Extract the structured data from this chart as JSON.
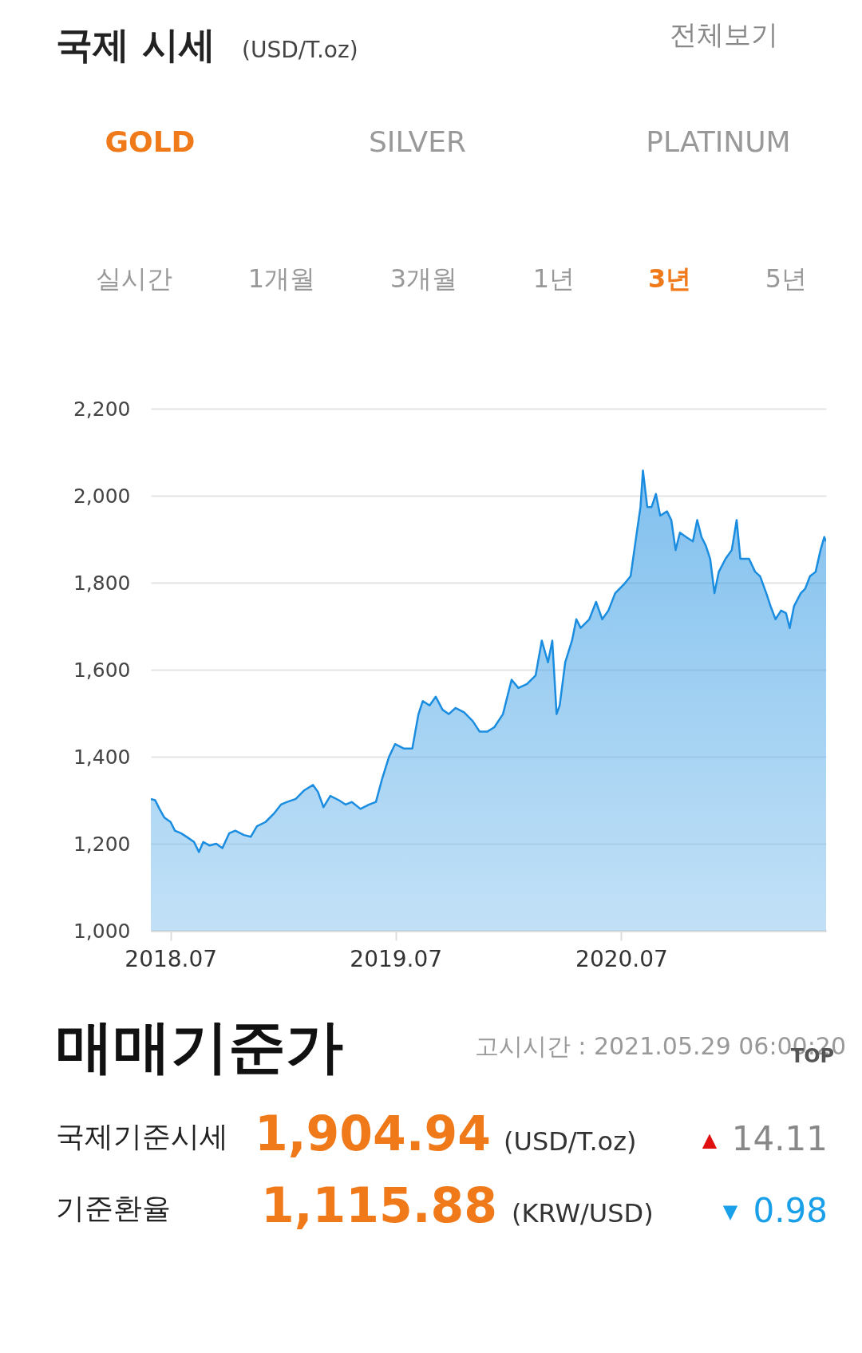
{
  "chart_data": {
    "type": "area",
    "title": "국제 시세",
    "subtitle": "(USD/T.oz)",
    "x": [
      "2018-05-30",
      "2018-06-06",
      "2018-06-13",
      "2018-06-21",
      "2018-07-01",
      "2018-07-08",
      "2018-07-18",
      "2018-07-29",
      "2018-08-08",
      "2018-08-16",
      "2018-08-23",
      "2018-09-02",
      "2018-09-13",
      "2018-09-23",
      "2018-10-04",
      "2018-10-14",
      "2018-10-28",
      "2018-11-08",
      "2018-11-18",
      "2018-12-02",
      "2018-12-16",
      "2018-12-27",
      "2019-01-06",
      "2019-01-20",
      "2019-02-03",
      "2019-02-17",
      "2019-02-25",
      "2019-03-06",
      "2019-03-17",
      "2019-03-31",
      "2019-04-11",
      "2019-04-21",
      "2019-05-05",
      "2019-05-19",
      "2019-05-30",
      "2019-06-09",
      "2019-06-20",
      "2019-06-30",
      "2019-07-14",
      "2019-07-28",
      "2019-08-07",
      "2019-08-14",
      "2019-08-25",
      "2019-09-04",
      "2019-09-15",
      "2019-09-25",
      "2019-10-06",
      "2019-10-20",
      "2019-11-03",
      "2019-11-14",
      "2019-11-27",
      "2019-12-08",
      "2019-12-22",
      "2020-01-05",
      "2020-01-16",
      "2020-01-30",
      "2020-02-13",
      "2020-02-23",
      "2020-03-04",
      "2020-03-11",
      "2020-03-18",
      "2020-03-23",
      "2020-04-01",
      "2020-04-12",
      "2020-04-19",
      "2020-04-26",
      "2020-05-10",
      "2020-05-21",
      "2020-05-31",
      "2020-06-10",
      "2020-06-21",
      "2020-07-05",
      "2020-07-16",
      "2020-07-26",
      "2020-08-01",
      "2020-08-05",
      "2020-08-12",
      "2020-08-19",
      "2020-08-26",
      "2020-09-02",
      "2020-09-13",
      "2020-09-20",
      "2020-09-27",
      "2020-10-04",
      "2020-10-14",
      "2020-10-25",
      "2020-11-01",
      "2020-11-08",
      "2020-11-15",
      "2020-11-22",
      "2020-11-29",
      "2020-12-06",
      "2020-12-17",
      "2020-12-27",
      "2021-01-04",
      "2021-01-10",
      "2021-01-24",
      "2021-02-03",
      "2021-02-11",
      "2021-02-21",
      "2021-02-28",
      "2021-03-08",
      "2021-03-17",
      "2021-03-25",
      "2021-03-31",
      "2021-04-07",
      "2021-04-18",
      "2021-04-25",
      "2021-05-03",
      "2021-05-12",
      "2021-05-20",
      "2021-05-26",
      "2021-05-29"
    ],
    "series": [
      {
        "color": "#1a8de0",
        "values": [
          1303,
          1300,
          1280,
          1260,
          1250,
          1230,
          1224,
          1214,
          1204,
          1181,
          1204,
          1196,
          1200,
          1190,
          1224,
          1230,
          1220,
          1216,
          1240,
          1250,
          1270,
          1290,
          1296,
          1303,
          1323,
          1335,
          1319,
          1284,
          1310,
          1300,
          1290,
          1296,
          1280,
          1290,
          1296,
          1349,
          1399,
          1429,
          1419,
          1419,
          1498,
          1528,
          1518,
          1538,
          1508,
          1498,
          1512,
          1502,
          1482,
          1458,
          1458,
          1468,
          1498,
          1577,
          1558,
          1567,
          1587,
          1667,
          1617,
          1667,
          1498,
          1518,
          1617,
          1667,
          1716,
          1696,
          1716,
          1756,
          1716,
          1736,
          1776,
          1796,
          1815,
          1915,
          1974,
          2058,
          1974,
          1974,
          2004,
          1954,
          1964,
          1944,
          1875,
          1915,
          1905,
          1895,
          1944,
          1905,
          1885,
          1855,
          1776,
          1825,
          1855,
          1875,
          1944,
          1855,
          1855,
          1825,
          1815,
          1776,
          1746,
          1716,
          1736,
          1730,
          1696,
          1746,
          1776,
          1786,
          1815,
          1825,
          1875,
          1905,
          1895
        ]
      }
    ],
    "xlim": [
      "2018-05-30",
      "2021-05-29"
    ],
    "xticks": [
      {
        "value": "2018-07-01",
        "label": "2018.07"
      },
      {
        "value": "2019-07-01",
        "label": "2019.07"
      },
      {
        "value": "2020-07-01",
        "label": "2020.07"
      }
    ],
    "ylim": [
      1000,
      2200
    ],
    "yticks": [
      {
        "value": 1000,
        "label": "1,000"
      },
      {
        "value": 1200,
        "label": "1,200"
      },
      {
        "value": 1400,
        "label": "1,400"
      },
      {
        "value": 1600,
        "label": "1,600"
      },
      {
        "value": 1800,
        "label": "1,800"
      },
      {
        "value": 2000,
        "label": "2,000"
      },
      {
        "value": 2200,
        "label": "2,200"
      }
    ],
    "grid": "y",
    "legend": false,
    "annotations": [
      "전체보기",
      "GOLD",
      "SILVER",
      "PLATINUM",
      "실시간",
      "1개월",
      "3개월",
      "1년",
      "3년",
      "5년",
      "매매기준가",
      "고시시간 : 2021.05.29 06:00:20",
      "TOP",
      "국제기준시세",
      "1,904.94",
      "(USD/T.oz)",
      "▲",
      "14.11",
      "기준환율",
      "1,115.88",
      "(KRW/USD)",
      "▼",
      "0.98"
    ]
  }
}
